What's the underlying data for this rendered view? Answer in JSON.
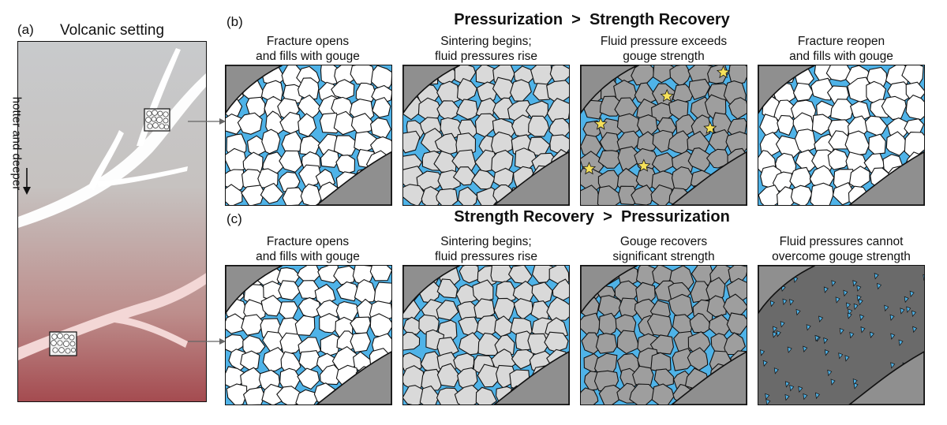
{
  "panel_a": {
    "label": "(a)",
    "title": "Volcanic setting",
    "axis_text": "hotter and deeper"
  },
  "row_b": {
    "label": "(b)",
    "heading": "Pressurization  >  Strength Recovery",
    "panels": [
      {
        "line1": "Fracture opens",
        "line2": "and fills with gouge"
      },
      {
        "line1": "Sintering begins;",
        "line2": "fluid pressures rise"
      },
      {
        "line1": "Fluid pressure exceeds",
        "line2": "gouge strength"
      },
      {
        "line1": "Fracture reopen",
        "line2": "and fills with gouge"
      }
    ]
  },
  "row_c": {
    "label": "(c)",
    "heading": "Strength Recovery  >  Pressurization",
    "panels": [
      {
        "line1": "Fracture opens",
        "line2": "and fills with gouge"
      },
      {
        "line1": "Sintering begins;",
        "line2": "fluid pressures rise"
      },
      {
        "line1": "Gouge recovers",
        "line2": "significant strength"
      },
      {
        "line1": "Fluid pressures cannot",
        "line2": "overcome gouge strength"
      }
    ]
  },
  "colors": {
    "wall_rock": "#8f8f8f",
    "fluid": "#4fb3e8",
    "gouge_fresh": "#ffffff",
    "gouge_sintered": "#d9d9d9",
    "gouge_strong": "#9e9e9e",
    "gouge_sealed": "#6a6a6a",
    "fracture_star": "#f6e15a",
    "gradient_top": "#c9cbcd",
    "gradient_bottom": "#a64a4f"
  }
}
